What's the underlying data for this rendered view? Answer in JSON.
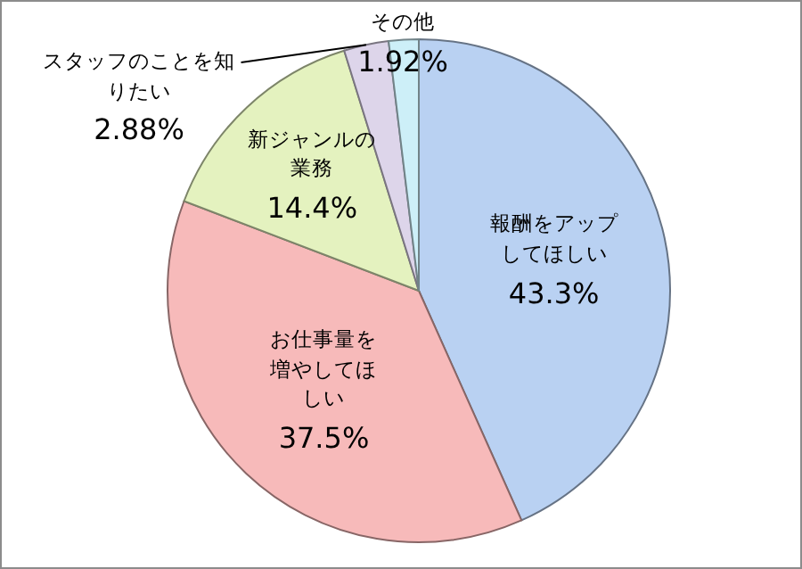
{
  "chart_data": {
    "type": "pie",
    "categories": [
      "報酬をアップしてほしい",
      "お仕事量を増やしてほしい",
      "新ジャンルの業務",
      "スタッフのことを知りたい",
      "その他"
    ],
    "values": [
      43.3,
      37.5,
      14.4,
      2.88,
      1.92
    ],
    "value_labels": [
      "43.3%",
      "37.5%",
      "14.4%",
      "2.88%",
      "1.92%"
    ],
    "colors": [
      "#b9d1f2",
      "#f7baba",
      "#e4f2bf",
      "#ddd5ea",
      "#cdeff8"
    ]
  }
}
